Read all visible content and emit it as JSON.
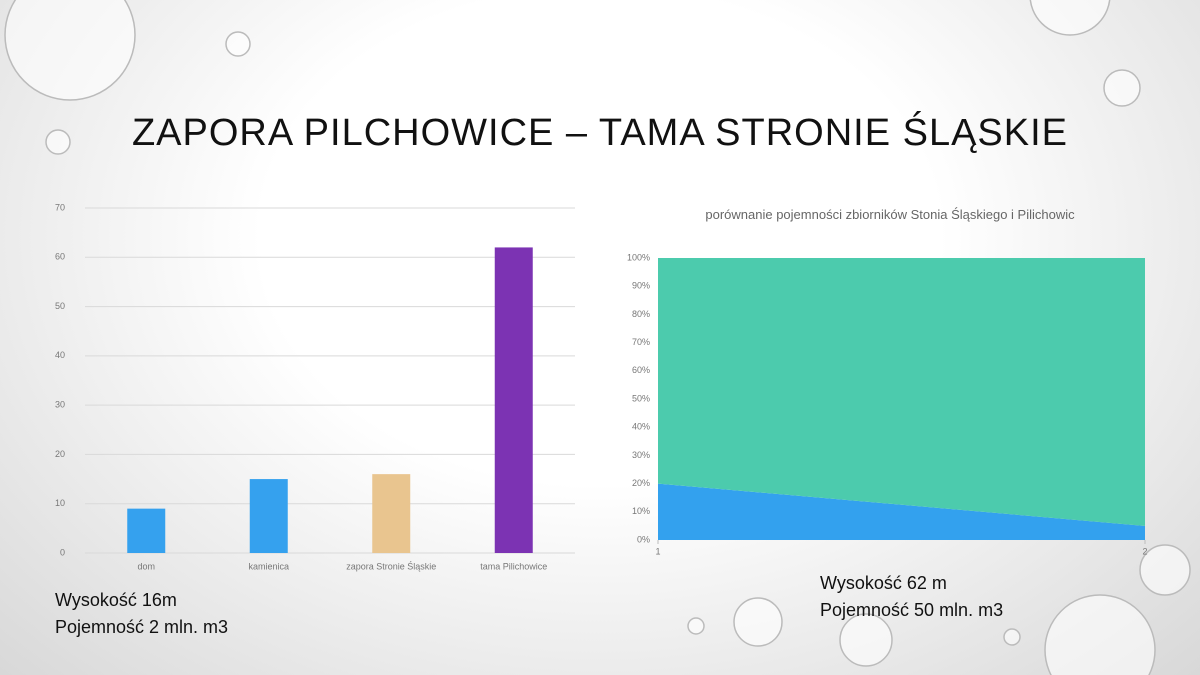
{
  "slide": {
    "title": "ZAPORA PILCHOWICE – TAMA STRONIE ŚLĄSKIE",
    "captions": [
      "Wysokość 16m",
      "Pojemność 2 mln. m3",
      "Wysokość 62 m",
      "Pojemność 50 mln. m3"
    ]
  },
  "chart_data": [
    {
      "type": "bar",
      "categories": [
        "dom",
        "kamienica",
        "zapora Stronie Śląskie",
        "tama Pilichowice"
      ],
      "values": [
        9,
        15,
        16,
        62
      ],
      "colors": [
        "#35a1ee",
        "#35a1ee",
        "#e9c58f",
        "#7c33b3"
      ],
      "ylim": [
        0,
        70
      ],
      "yticks": [
        0,
        10,
        20,
        30,
        40,
        50,
        60,
        70
      ],
      "grid": true
    },
    {
      "type": "area",
      "stacked_percent": true,
      "title": "porównanie pojemności zbiorników Stonia Śląskiego i Pilichowic",
      "x": [
        1,
        2
      ],
      "series": [
        {
          "color": "#33a1ee",
          "values": [
            20,
            5
          ]
        },
        {
          "color": "#4ccbad",
          "values": [
            80,
            95
          ]
        }
      ],
      "xlim": [
        1,
        2
      ],
      "xticks": [
        1,
        2
      ],
      "ylim": [
        0,
        100
      ],
      "yticks": [
        {
          "value": 0,
          "label": "0%"
        },
        {
          "value": 10,
          "label": "10%"
        },
        {
          "value": 20,
          "label": "20%"
        },
        {
          "value": 30,
          "label": "30%"
        },
        {
          "value": 40,
          "label": "40%"
        },
        {
          "value": 50,
          "label": "50%"
        },
        {
          "value": 60,
          "label": "60%"
        },
        {
          "value": 70,
          "label": "70%"
        },
        {
          "value": 80,
          "label": "80%"
        },
        {
          "value": 90,
          "label": "90%"
        },
        {
          "value": 100,
          "label": "100%"
        }
      ],
      "grid": false
    }
  ]
}
